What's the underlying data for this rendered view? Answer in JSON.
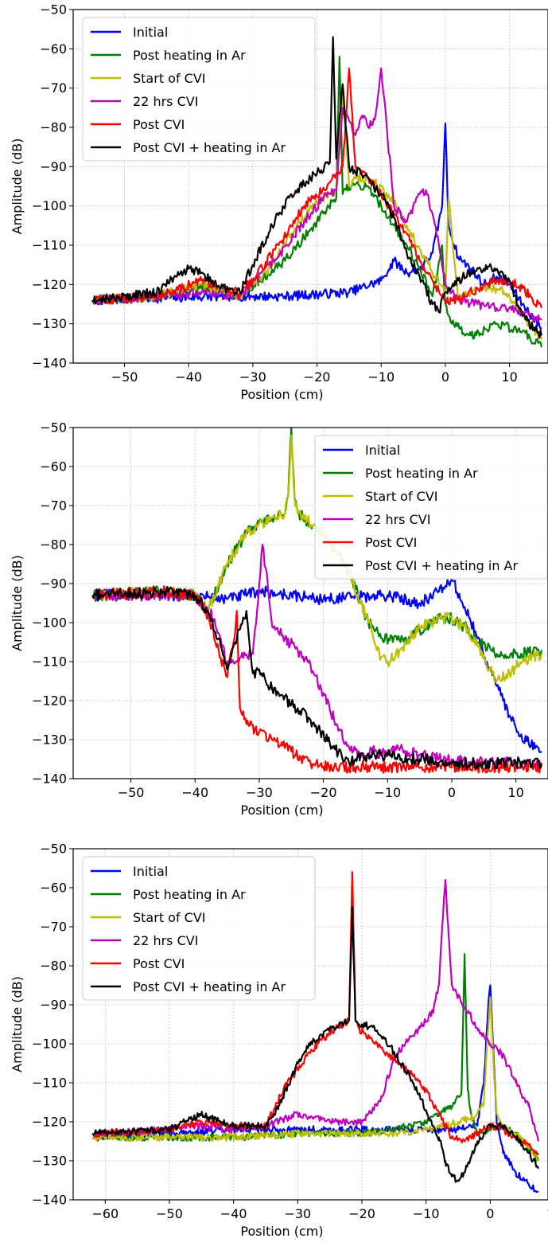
{
  "colors": {
    "Initial": "#0000ff",
    "Post heating in Ar": "#008000",
    "Start of CVI": "#bfbf00",
    "22 hrs CVI": "#bf00bf",
    "Post CVI": "#ff0000",
    "Post CVI + heating in Ar": "#000000"
  },
  "chart_data": [
    {
      "type": "line",
      "xlabel": "Position (cm)",
      "ylabel": "Amplitude (dB)",
      "xlim": [
        -58,
        16
      ],
      "ylim": [
        -140,
        -50
      ],
      "xticks": [
        -50,
        -40,
        -30,
        -20,
        -10,
        0,
        10
      ],
      "xtick_labels": [
        "−50",
        "−40",
        "−30",
        "−20",
        "−10",
        "0",
        "10"
      ],
      "yticks": [
        -140,
        -130,
        -120,
        -110,
        -100,
        -90,
        -80,
        -70,
        -60,
        -50
      ],
      "ytick_labels": [
        "−140",
        "−130",
        "−120",
        "−110",
        "−100",
        "−90",
        "−80",
        "−70",
        "−60",
        "−50"
      ],
      "grid": true,
      "legend_position": "top-left",
      "noise": 1.2,
      "series": [
        {
          "name": "Initial",
          "x": [
            -55,
            -45,
            -35,
            -25,
            -15,
            -10,
            -8,
            -6,
            -4,
            -2,
            -0.5,
            0,
            0.5,
            2,
            4,
            6,
            8,
            10,
            12,
            15
          ],
          "y": [
            -124,
            -123.5,
            -123,
            -123,
            -122,
            -119,
            -114,
            -117,
            -116,
            -112,
            -100,
            -79,
            -105,
            -113,
            -116,
            -120,
            -118,
            -120,
            -125,
            -131
          ]
        },
        {
          "name": "Post heating in Ar",
          "x": [
            -55,
            -45,
            -38,
            -32,
            -25,
            -20,
            -17,
            -16.5,
            -16,
            -15,
            -12,
            -10,
            -8,
            -6,
            -4,
            -2,
            -0.5,
            0,
            1,
            4,
            8,
            12,
            15
          ],
          "y": [
            -124,
            -123,
            -121,
            -123,
            -114,
            -104,
            -98,
            -62,
            -97,
            -95,
            -95,
            -100,
            -105,
            -110,
            -116,
            -123,
            -110,
            -125,
            -130,
            -133,
            -130,
            -132,
            -136
          ]
        },
        {
          "name": "Start of CVI",
          "x": [
            -55,
            -45,
            -38,
            -32,
            -28,
            -24,
            -20,
            -17,
            -16,
            -15,
            -14,
            -12,
            -10,
            -8,
            -6,
            -4,
            -2,
            0,
            0.5,
            2,
            5,
            8,
            10,
            12,
            15
          ],
          "y": [
            -124,
            -123,
            -120,
            -123,
            -117,
            -107,
            -99,
            -96,
            -70,
            -95,
            -93,
            -93,
            -95,
            -99,
            -105,
            -111,
            -117,
            -122,
            -98,
            -124,
            -121,
            -121,
            -123,
            -128,
            -134
          ]
        },
        {
          "name": "22 hrs CVI",
          "x": [
            -55,
            -45,
            -38,
            -32,
            -26,
            -22,
            -19,
            -17,
            -16,
            -14,
            -13,
            -12,
            -11,
            -10,
            -8,
            -6,
            -4,
            -3,
            -2,
            -1,
            0,
            2,
            5,
            8,
            10,
            12,
            15
          ],
          "y": [
            -124,
            -123,
            -122,
            -123,
            -113,
            -104,
            -98,
            -96,
            -75,
            -82,
            -77,
            -80,
            -78,
            -65,
            -100,
            -104,
            -97,
            -96,
            -102,
            -110,
            -120,
            -124,
            -125,
            -126,
            -126,
            -127,
            -129
          ]
        },
        {
          "name": "Post CVI",
          "x": [
            -55,
            -45,
            -38,
            -32,
            -30,
            -26,
            -22,
            -18,
            -16,
            -15,
            -14,
            -12,
            -10,
            -8,
            -6,
            -4,
            -2,
            0,
            2,
            5,
            8,
            10,
            12,
            15
          ],
          "y": [
            -124,
            -123,
            -119,
            -122,
            -119,
            -110,
            -100,
            -94,
            -90,
            -65,
            -90,
            -93,
            -97,
            -102,
            -107,
            -114,
            -119,
            -124,
            -124,
            -121,
            -119,
            -119,
            -121,
            -126
          ]
        },
        {
          "name": "Post CVI + heating in Ar",
          "x": [
            -55,
            -45,
            -42,
            -40,
            -38,
            -35,
            -32,
            -30,
            -27,
            -24,
            -21,
            -18,
            -17.5,
            -17,
            -16,
            -15,
            -13,
            -10,
            -8,
            -6,
            -4,
            -2,
            -1,
            0,
            2,
            4,
            6,
            8,
            10,
            12,
            15
          ],
          "y": [
            -124,
            -122,
            -118,
            -116,
            -117,
            -121,
            -122,
            -115,
            -105,
            -97,
            -93,
            -89,
            -57,
            -88,
            -69,
            -90,
            -92,
            -97,
            -103,
            -112,
            -118,
            -125,
            -127,
            -122,
            -119,
            -117,
            -116,
            -116,
            -119,
            -128,
            -133
          ]
        }
      ]
    },
    {
      "type": "line",
      "xlabel": "Position (cm)",
      "ylabel": "Amplitude (dB)",
      "xlim": [
        -59,
        15
      ],
      "ylim": [
        -140,
        -50
      ],
      "xticks": [
        -50,
        -40,
        -30,
        -20,
        -10,
        0,
        10
      ],
      "xtick_labels": [
        "−50",
        "−40",
        "−30",
        "−20",
        "−10",
        "0",
        "10"
      ],
      "yticks": [
        -140,
        -130,
        -120,
        -110,
        -100,
        -90,
        -80,
        -70,
        -60,
        -50
      ],
      "ytick_labels": [
        "−140",
        "−130",
        "−120",
        "−110",
        "−100",
        "−90",
        "−80",
        "−70",
        "−60",
        "−50"
      ],
      "grid": true,
      "legend_position": "top-right",
      "noise": 1.5,
      "series": [
        {
          "name": "Initial",
          "x": [
            -56,
            -45,
            -40,
            -35,
            -30,
            -20,
            -10,
            -5,
            -2,
            0,
            2,
            4,
            6,
            8,
            10,
            12,
            14
          ],
          "y": [
            -93,
            -93,
            -93,
            -94,
            -92,
            -94,
            -93,
            -95,
            -92,
            -89,
            -96,
            -104,
            -112,
            -120,
            -127,
            -131,
            -133
          ]
        },
        {
          "name": "Post heating in Ar",
          "x": [
            -56,
            -45,
            -40,
            -38,
            -35,
            -32,
            -28,
            -26,
            -25.5,
            -25,
            -24.5,
            -24,
            -20,
            -16,
            -13,
            -11,
            -8,
            -5,
            -2,
            0,
            2,
            4,
            7,
            10,
            14
          ],
          "y": [
            -93,
            -92,
            -93,
            -97,
            -85,
            -77,
            -73,
            -72,
            -68,
            -50,
            -68,
            -72,
            -77,
            -87,
            -100,
            -104,
            -105,
            -102,
            -99,
            -99,
            -101,
            -105,
            -108,
            -108,
            -107
          ]
        },
        {
          "name": "Start of CVI",
          "x": [
            -56,
            -45,
            -40,
            -38,
            -35,
            -32,
            -28,
            -26,
            -25.5,
            -25,
            -24.5,
            -24,
            -20,
            -16,
            -13,
            -11,
            -10,
            -8,
            -5,
            -2,
            0,
            2,
            4,
            6,
            7,
            9,
            11,
            14
          ],
          "y": [
            -93,
            -92,
            -93,
            -97,
            -85,
            -77,
            -73,
            -72,
            -68,
            -52,
            -68,
            -72,
            -77,
            -87,
            -100,
            -109,
            -110,
            -107,
            -101,
            -99,
            -99,
            -101,
            -106,
            -112,
            -115,
            -113,
            -110,
            -108
          ]
        },
        {
          "name": "22 hrs CVI",
          "x": [
            -56,
            -45,
            -40,
            -37,
            -35,
            -33,
            -31,
            -30,
            -29.5,
            -29,
            -28,
            -26,
            -24,
            -22,
            -20,
            -18,
            -16,
            -14,
            -12,
            -10,
            -8,
            -5,
            -2,
            0,
            5,
            10,
            14
          ],
          "y": [
            -93,
            -93,
            -93,
            -99,
            -110,
            -109,
            -108,
            -90,
            -80,
            -86,
            -101,
            -104,
            -107,
            -111,
            -118,
            -126,
            -132,
            -134,
            -133,
            -134,
            -132,
            -134,
            -135,
            -135,
            -136,
            -136,
            -136
          ]
        },
        {
          "name": "Post CVI",
          "x": [
            -56,
            -45,
            -40,
            -38,
            -36,
            -35,
            -34,
            -33.5,
            -33,
            -32,
            -30,
            -28,
            -25,
            -22,
            -20,
            -18,
            -16,
            -10,
            0,
            10,
            14
          ],
          "y": [
            -93,
            -92,
            -93,
            -98,
            -109,
            -114,
            -105,
            -97,
            -122,
            -126,
            -128,
            -130,
            -133,
            -136,
            -137,
            -137,
            -137,
            -137,
            -137,
            -137,
            -137
          ]
        },
        {
          "name": "Post CVI + heating in Ar",
          "x": [
            -56,
            -45,
            -40,
            -38,
            -36,
            -35,
            -34,
            -32,
            -31,
            -30,
            -29,
            -27,
            -25,
            -22,
            -19,
            -16,
            -15,
            -12,
            -10,
            -5,
            0,
            5,
            10,
            14
          ],
          "y": [
            -93,
            -92,
            -93,
            -97,
            -106,
            -112,
            -106,
            -97,
            -113,
            -112,
            -115,
            -118,
            -121,
            -125,
            -131,
            -136,
            -135,
            -134,
            -134,
            -135,
            -136,
            -136,
            -136,
            -136
          ]
        }
      ]
    },
    {
      "type": "line",
      "xlabel": "Position (cm)",
      "ylabel": "Amplitude (dB)",
      "xlim": [
        -65,
        9
      ],
      "ylim": [
        -140,
        -50
      ],
      "xticks": [
        -60,
        -50,
        -40,
        -30,
        -20,
        -10,
        0,
        10
      ],
      "xtick_labels": [
        "−60",
        "−50",
        "−40",
        "−30",
        "−20",
        "−10",
        "0",
        "10"
      ],
      "yticks": [
        -140,
        -130,
        -120,
        -110,
        -100,
        -90,
        -80,
        -70,
        -60,
        -50
      ],
      "ytick_labels": [
        "−140",
        "−130",
        "−120",
        "−110",
        "−100",
        "−90",
        "−80",
        "−70",
        "−60",
        "−50"
      ],
      "grid": true,
      "legend_position": "top-left",
      "noise": 0.9,
      "series": [
        {
          "name": "Initial",
          "x": [
            -62,
            -50,
            -40,
            -30,
            -20,
            -10,
            -5,
            -2,
            -1,
            -0.3,
            0,
            0.3,
            1,
            2,
            4,
            6,
            7.5
          ],
          "y": [
            -124,
            -123,
            -122,
            -122,
            -122,
            -122,
            -122,
            -121,
            -110,
            -90,
            -85,
            -95,
            -120,
            -128,
            -133,
            -136,
            -138
          ]
        },
        {
          "name": "Post heating in Ar",
          "x": [
            -62,
            -50,
            -40,
            -30,
            -20,
            -15,
            -10,
            -8,
            -6,
            -4.5,
            -4,
            -3.5,
            -3,
            -2,
            0,
            2,
            4,
            6,
            7.5
          ],
          "y": [
            -124,
            -124,
            -124,
            -123,
            -123,
            -122,
            -120,
            -118,
            -116,
            -113,
            -77,
            -112,
            -118,
            -123,
            -122,
            -121,
            -123,
            -127,
            -130
          ]
        },
        {
          "name": "Start of CVI",
          "x": [
            -62,
            -50,
            -40,
            -30,
            -20,
            -15,
            -10,
            -7,
            -5,
            -3,
            -2,
            -1,
            -0.5,
            0,
            0.5,
            1,
            2,
            4,
            6,
            7.5
          ],
          "y": [
            -124,
            -124,
            -124,
            -123,
            -123,
            -123,
            -122,
            -121,
            -120,
            -119,
            -118,
            -115,
            -100,
            -88,
            -105,
            -118,
            -121,
            -123,
            -126,
            -130
          ]
        },
        {
          "name": "22 hrs CVI",
          "x": [
            -62,
            -50,
            -45,
            -40,
            -35,
            -30,
            -25,
            -20,
            -17,
            -15,
            -13,
            -11,
            -9,
            -8,
            -7.5,
            -7,
            -6.5,
            -6,
            -5,
            -4,
            -3,
            -2,
            0,
            2,
            4,
            6,
            7.5
          ],
          "y": [
            -123,
            -122,
            -121,
            -122,
            -121,
            -118,
            -120,
            -120,
            -114,
            -104,
            -99,
            -96,
            -92,
            -85,
            -70,
            -58,
            -72,
            -85,
            -88,
            -91,
            -93,
            -96,
            -100,
            -103,
            -110,
            -116,
            -125
          ]
        },
        {
          "name": "Post CVI",
          "x": [
            -62,
            -50,
            -45,
            -40,
            -35,
            -32,
            -28,
            -25,
            -23,
            -22,
            -21.5,
            -21,
            -20.5,
            -20,
            -18,
            -15,
            -12,
            -10,
            -8,
            -6,
            -4,
            -2,
            0,
            2,
            4,
            6,
            7.5
          ],
          "y": [
            -123,
            -122,
            -120,
            -121,
            -121,
            -111,
            -102,
            -97,
            -95,
            -94,
            -56,
            -94,
            -96,
            -97,
            -100,
            -104,
            -108,
            -112,
            -118,
            -124,
            -125,
            -123,
            -121,
            -122,
            -124,
            -126,
            -128
          ]
        },
        {
          "name": "Post CVI + heating in Ar",
          "x": [
            -62,
            -50,
            -45,
            -42,
            -40,
            -35,
            -33,
            -30,
            -28,
            -25,
            -23,
            -22,
            -21.5,
            -21,
            -20.5,
            -20,
            -18,
            -15,
            -12,
            -10,
            -8,
            -7,
            -6,
            -5,
            -4,
            -2,
            0,
            2,
            4,
            6,
            7.5
          ],
          "y": [
            -123,
            -122,
            -118,
            -120,
            -121,
            -121,
            -116,
            -105,
            -100,
            -96,
            -95,
            -94,
            -65,
            -94,
            -95,
            -95,
            -96,
            -102,
            -110,
            -117,
            -124,
            -130,
            -134,
            -135,
            -133,
            -125,
            -121,
            -121,
            -124,
            -128,
            -132
          ]
        }
      ]
    }
  ]
}
